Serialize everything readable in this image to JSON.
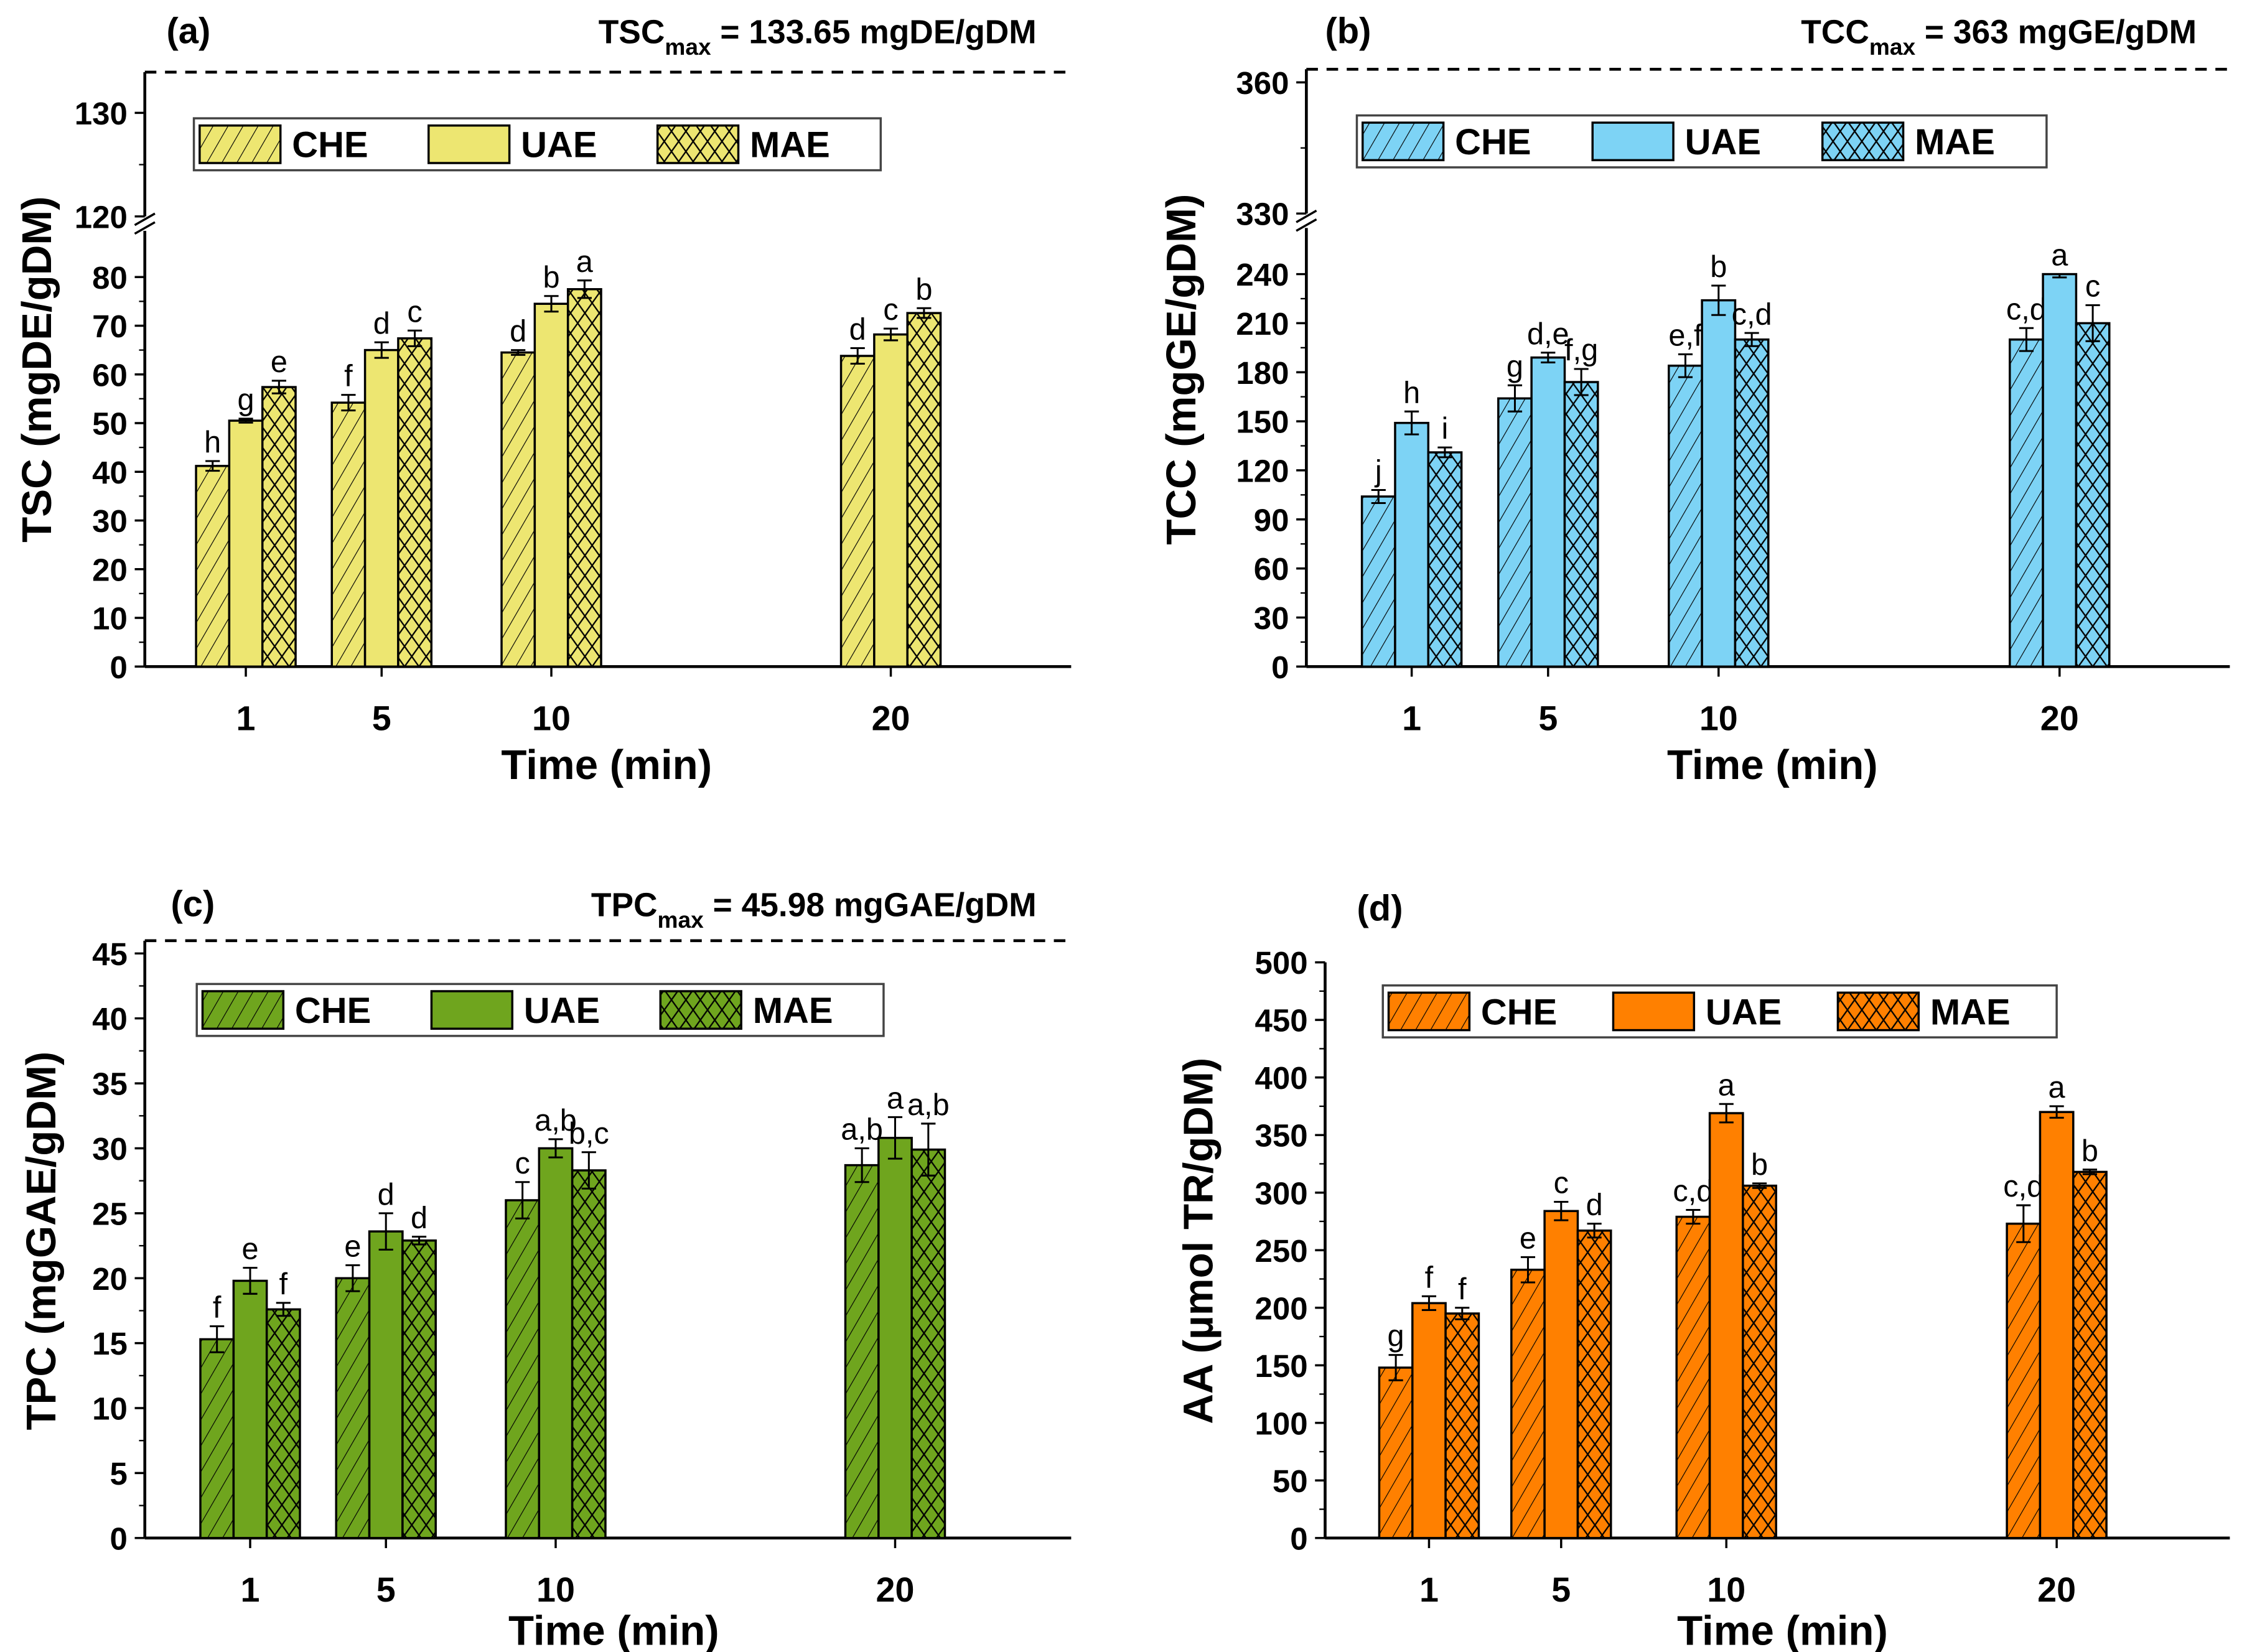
{
  "colors": {
    "tsc": "#EDE671",
    "tcc": "#7DD3F5",
    "tpc": "#6FA51E",
    "aa": "#FF8000"
  },
  "chart_data": [
    {
      "type": "bar",
      "panel": "(a)",
      "max_label": "TSC",
      "max_sub": "max",
      "max_value": "= 133.65 mgDE/gDM",
      "max": 133.65,
      "xlabel": "Time (min)",
      "ylabel": "TSC (mgDE/gDM)",
      "categories": [
        "1",
        "5",
        "10",
        "20"
      ],
      "x": [
        1,
        5,
        10,
        20
      ],
      "ybreak": [
        80,
        120
      ],
      "ylim": [
        0,
        133.65
      ],
      "yticks": [
        0,
        10,
        20,
        30,
        40,
        50,
        60,
        70,
        80,
        120,
        130
      ],
      "legend_position": "top",
      "hatch": [
        "diagonal",
        "none",
        "crosshatch"
      ],
      "series": [
        {
          "name": "CHE",
          "values": [
            41.2,
            54.2,
            64.5,
            63.8
          ],
          "errors": [
            1.0,
            1.6,
            0.5,
            1.6
          ],
          "letters": [
            "h",
            "f",
            "d",
            "d"
          ]
        },
        {
          "name": "UAE",
          "values": [
            50.5,
            65,
            74.5,
            68.2
          ],
          "errors": [
            0.4,
            1.6,
            1.6,
            1.2
          ],
          "letters": [
            "g",
            "d",
            "b",
            "c"
          ]
        },
        {
          "name": "MAE",
          "values": [
            57.4,
            67.4,
            77.5,
            72.6
          ],
          "errors": [
            1.3,
            1.6,
            1.8,
            1.0
          ],
          "letters": [
            "e",
            "c",
            "a",
            "b"
          ]
        }
      ]
    },
    {
      "type": "bar",
      "panel": "(b)",
      "max_label": "TCC",
      "max_sub": "max",
      "max_value": "= 363 mgGE/gDM",
      "max": 363,
      "xlabel": "Time (min)",
      "ylabel": "TCC (mgGE/gDM)",
      "categories": [
        "1",
        "5",
        "10",
        "20"
      ],
      "x": [
        1,
        5,
        10,
        20
      ],
      "ybreak": [
        240,
        330
      ],
      "ylim": [
        0,
        363
      ],
      "yticks": [
        0,
        30,
        60,
        90,
        120,
        150,
        180,
        210,
        240,
        330,
        360
      ],
      "legend_position": "top",
      "hatch": [
        "diagonal",
        "none",
        "crosshatch"
      ],
      "series": [
        {
          "name": "CHE",
          "values": [
            104,
            164,
            184,
            200
          ],
          "errors": [
            4,
            8,
            7,
            7
          ],
          "letters": [
            "j",
            "g",
            "e,f",
            "c,d"
          ]
        },
        {
          "name": "UAE",
          "values": [
            149,
            189,
            224,
            246
          ],
          "errors": [
            7,
            3,
            9,
            8
          ],
          "letters": [
            "h",
            "d,e",
            "b",
            "a"
          ]
        },
        {
          "name": "MAE",
          "values": [
            131,
            174,
            200,
            210
          ],
          "errors": [
            3,
            8,
            4,
            11
          ],
          "letters": [
            "i",
            "f,g",
            "c,d",
            "c"
          ]
        }
      ]
    },
    {
      "type": "bar",
      "panel": "(c)",
      "max_label": "TPC",
      "max_sub": "max",
      "max_value": "= 45.98 mgGAE/gDM",
      "max": 45.98,
      "xlabel": "Time (min)",
      "ylabel": "TPC (mgGAE/gDM)",
      "categories": [
        "1",
        "5",
        "10",
        "20"
      ],
      "x": [
        1,
        5,
        10,
        20
      ],
      "ylim": [
        0,
        45.98
      ],
      "yticks": [
        0,
        5,
        10,
        15,
        20,
        25,
        30,
        35,
        40,
        45
      ],
      "legend_position": "top",
      "hatch": [
        "diagonal",
        "none",
        "crosshatch"
      ],
      "series": [
        {
          "name": "CHE",
          "values": [
            15.3,
            20,
            26,
            28.7
          ],
          "errors": [
            1.0,
            1.0,
            1.4,
            1.3
          ],
          "letters": [
            "f",
            "e",
            "c",
            "a,b"
          ]
        },
        {
          "name": "UAE",
          "values": [
            19.8,
            23.6,
            30,
            30.8
          ],
          "errors": [
            1.0,
            1.4,
            0.7,
            1.6
          ],
          "letters": [
            "e",
            "d",
            "a,b",
            "a"
          ]
        },
        {
          "name": "MAE",
          "values": [
            17.6,
            22.9,
            28.3,
            29.9
          ],
          "errors": [
            0.5,
            0.3,
            1.4,
            2.0
          ],
          "letters": [
            "f",
            "d",
            "b,c",
            "a,b"
          ]
        }
      ]
    },
    {
      "type": "bar",
      "panel": "(d)",
      "xlabel": "Time (min)",
      "ylabel": "AA (µmol TR/gDM)",
      "categories": [
        "1",
        "5",
        "10",
        "20"
      ],
      "x": [
        1,
        5,
        10,
        20
      ],
      "ylim": [
        0,
        500
      ],
      "yticks": [
        0,
        50,
        100,
        150,
        200,
        250,
        300,
        350,
        400,
        450,
        500
      ],
      "legend_position": "top",
      "hatch": [
        "diagonal",
        "none",
        "crosshatch"
      ],
      "series": [
        {
          "name": "CHE",
          "values": [
            148,
            233,
            279,
            273
          ],
          "errors": [
            11,
            11,
            6,
            16
          ],
          "letters": [
            "g",
            "e",
            "c,d",
            "c,d"
          ]
        },
        {
          "name": "UAE",
          "values": [
            204,
            284,
            369,
            370
          ],
          "errors": [
            6,
            8,
            8,
            5
          ],
          "letters": [
            "f",
            "c",
            "a",
            "a"
          ]
        },
        {
          "name": "MAE",
          "values": [
            195,
            267,
            306,
            318
          ],
          "errors": [
            5,
            6,
            2,
            2
          ],
          "letters": [
            "f",
            "d",
            "b",
            "b"
          ]
        }
      ]
    }
  ]
}
